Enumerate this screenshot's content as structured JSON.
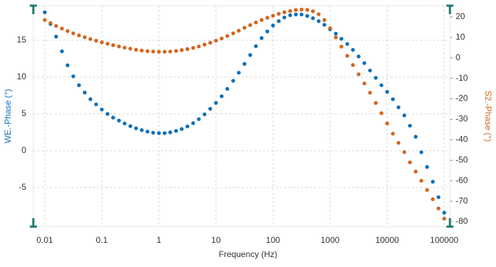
{
  "chart_data": {
    "type": "scatter",
    "x": [
      0.01,
      0.0126,
      0.0158,
      0.02,
      0.0251,
      0.0316,
      0.0398,
      0.0501,
      0.0631,
      0.0794,
      0.1,
      0.126,
      0.158,
      0.2,
      0.251,
      0.316,
      0.398,
      0.501,
      0.631,
      0.794,
      1,
      1.26,
      1.58,
      2,
      2.51,
      3.16,
      3.98,
      5.01,
      6.31,
      7.94,
      10,
      12.6,
      15.8,
      20,
      25.1,
      31.6,
      39.8,
      50.1,
      63.1,
      79.4,
      100,
      126,
      158,
      200,
      251,
      316,
      398,
      501,
      631,
      794,
      1000,
      1260,
      1580,
      2000,
      2510,
      3160,
      3980,
      5010,
      6310,
      7940,
      10000,
      12600,
      15800,
      20000,
      25100,
      31600,
      39800,
      50100,
      63100,
      79400,
      100000
    ],
    "series": [
      {
        "name": "WE.-Phase (°)",
        "color": "#1070b8",
        "values": [
          18.8,
          17.2,
          15.5,
          13.5,
          11.6,
          10.1,
          8.9,
          7.9,
          7.0,
          6.3,
          5.6,
          5.0,
          4.5,
          4.1,
          3.7,
          3.35,
          3.05,
          2.8,
          2.6,
          2.45,
          2.4,
          2.4,
          2.5,
          2.7,
          2.95,
          3.3,
          3.75,
          4.3,
          4.95,
          5.7,
          6.5,
          7.4,
          8.4,
          9.5,
          10.6,
          11.8,
          13.0,
          14.2,
          15.3,
          16.2,
          17.0,
          17.6,
          18.1,
          18.4,
          18.5,
          18.5,
          18.3,
          18.0,
          17.6,
          17.1,
          16.5,
          15.9,
          15.2,
          14.5,
          13.7,
          12.8,
          11.9,
          10.9,
          9.9,
          8.9,
          8.0,
          7.0,
          5.9,
          4.8,
          3.4,
          1.9,
          -0.2,
          -2.2,
          -4.2,
          -6.3,
          -8.4
        ]
      },
      {
        "name": "S2.-Phase (°)",
        "color": "#d2661e",
        "axis": "y2",
        "values": [
          18.5,
          17,
          15.6,
          14.3,
          13.1,
          12,
          11,
          10.1,
          9.2,
          8.4,
          7.6,
          6.9,
          6.2,
          5.6,
          5.0,
          4.5,
          4.0,
          3.6,
          3.3,
          3.1,
          3.0,
          3.0,
          3.1,
          3.4,
          3.8,
          4.3,
          4.9,
          5.6,
          6.5,
          7.4,
          8.4,
          9.5,
          10.7,
          12.0,
          13.3,
          14.7,
          16.0,
          17.3,
          18.5,
          19.6,
          20.6,
          21.5,
          22.3,
          22.9,
          23.4,
          23.6,
          23.5,
          22.8,
          21.3,
          18.5,
          14.5,
          10,
          5.5,
          1,
          -3.5,
          -8,
          -12.5,
          -17,
          -22,
          -27,
          -32,
          -37,
          -41.5,
          -46,
          -51,
          -55.5,
          -60,
          -64.5,
          -69,
          -73.5,
          -78.5
        ]
      }
    ],
    "x_label": "Frequency (Hz)",
    "y_label": "WE.-Phase (°)",
    "y2_label": "S2.-Phase (°)",
    "xscale": "log",
    "xlim": [
      0.0063,
      126000
    ],
    "xticks": [
      0.01,
      0.1,
      1,
      10,
      100,
      1000,
      10000,
      100000
    ],
    "ylim": [
      -10.3,
      19.7
    ],
    "yticks": [
      -5,
      0,
      5,
      10,
      15
    ],
    "y2lim": [
      -82.4,
      25.5
    ],
    "y2ticks": [
      -80,
      -70,
      -60,
      -50,
      -40,
      -30,
      -20,
      -10,
      0,
      10,
      20
    ],
    "grid": true
  }
}
